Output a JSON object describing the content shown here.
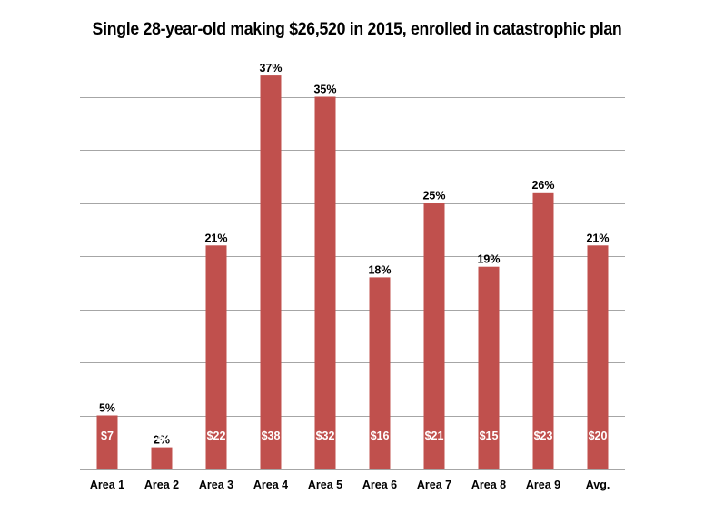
{
  "chart_data": {
    "type": "bar",
    "title": "Single 28-year-old making $26,520 in 2015, enrolled in catastrophic plan",
    "categories": [
      "Area 1",
      "Area 2",
      "Area 3",
      "Area 4",
      "Area 5",
      "Area 6",
      "Area 7",
      "Area 8",
      "Area 9",
      "Avg."
    ],
    "series": [
      {
        "values": [
          5,
          2,
          21,
          37,
          35,
          18,
          25,
          19,
          26,
          21
        ]
      }
    ],
    "value_labels": [
      "5%",
      "2%",
      "21%",
      "37%",
      "35%",
      "18%",
      "25%",
      "19%",
      "26%",
      "21%"
    ],
    "cost_labels": [
      "$7",
      "$2",
      "$22",
      "$38",
      "$32",
      "$16",
      "$21",
      "$15",
      "$23",
      "$20"
    ],
    "ylim": [
      0,
      40
    ],
    "grid": true,
    "bar_color": "#c0504d",
    "grid_color": "#a6a6a6"
  }
}
